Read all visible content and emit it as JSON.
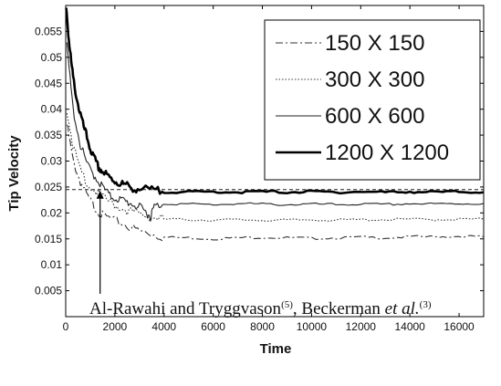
{
  "chart_data": {
    "type": "line",
    "xlabel": "Time",
    "ylabel": "Tip Velocity",
    "xlim": [
      0,
      17000
    ],
    "ylim": [
      0,
      0.06
    ],
    "xticks": [
      "0",
      "2000",
      "4000",
      "6000",
      "8000",
      "10000",
      "12000",
      "14000",
      "16000"
    ],
    "yticks": [
      "0.005",
      "0.01",
      "0.015",
      "0.02",
      "0.025",
      "0.03",
      "0.035",
      "0.04",
      "0.045",
      "0.05",
      "0.055"
    ],
    "grid": false,
    "legend_position": "top-right",
    "series": [
      {
        "name": "150 X 150",
        "style": "dash-dot",
        "color": "#333333",
        "points": [
          [
            50,
            0.037
          ],
          [
            300,
            0.03
          ],
          [
            600,
            0.026
          ],
          [
            900,
            0.023
          ],
          [
            1200,
            0.021
          ],
          [
            1500,
            0.0195
          ],
          [
            2000,
            0.0185
          ],
          [
            2500,
            0.0175
          ],
          [
            3000,
            0.0165
          ],
          [
            3500,
            0.016
          ],
          [
            4000,
            0.0153
          ],
          [
            5000,
            0.0152
          ],
          [
            6000,
            0.015
          ],
          [
            7000,
            0.0152
          ],
          [
            8000,
            0.0153
          ],
          [
            9000,
            0.0152
          ],
          [
            10000,
            0.0151
          ],
          [
            11000,
            0.0152
          ],
          [
            12000,
            0.0153
          ],
          [
            13000,
            0.0152
          ],
          [
            14000,
            0.0154
          ],
          [
            15000,
            0.0154
          ],
          [
            16000,
            0.0155
          ],
          [
            17000,
            0.0154
          ]
        ]
      },
      {
        "name": "300 X 300",
        "style": "dotted",
        "color": "#333333",
        "points": [
          [
            50,
            0.04
          ],
          [
            300,
            0.033
          ],
          [
            600,
            0.028
          ],
          [
            1000,
            0.025
          ],
          [
            1500,
            0.023
          ],
          [
            2000,
            0.0215
          ],
          [
            2500,
            0.0205
          ],
          [
            3000,
            0.0197
          ],
          [
            3500,
            0.0192
          ],
          [
            4000,
            0.0188
          ],
          [
            5000,
            0.0187
          ],
          [
            6000,
            0.0186
          ],
          [
            7000,
            0.0187
          ],
          [
            8000,
            0.0186
          ],
          [
            9000,
            0.0186
          ],
          [
            10000,
            0.0187
          ],
          [
            11000,
            0.0186
          ],
          [
            12000,
            0.0187
          ],
          [
            13000,
            0.0187
          ],
          [
            14000,
            0.0188
          ],
          [
            15000,
            0.0187
          ],
          [
            16000,
            0.0188
          ],
          [
            17000,
            0.0188
          ]
        ]
      },
      {
        "name": "600 X 600",
        "style": "solid-thin",
        "color": "#222222",
        "points": [
          [
            50,
            0.052
          ],
          [
            300,
            0.04
          ],
          [
            600,
            0.033
          ],
          [
            900,
            0.029
          ],
          [
            1200,
            0.027
          ],
          [
            1500,
            0.025
          ],
          [
            1800,
            0.0232
          ],
          [
            2100,
            0.0228
          ],
          [
            2400,
            0.0222
          ],
          [
            2700,
            0.0218
          ],
          [
            3000,
            0.021
          ],
          [
            3300,
            0.02
          ],
          [
            3450,
            0.0193
          ],
          [
            3600,
            0.0212
          ],
          [
            4000,
            0.0218
          ],
          [
            5000,
            0.0217
          ],
          [
            6000,
            0.0216
          ],
          [
            7000,
            0.0218
          ],
          [
            8000,
            0.0217
          ],
          [
            9000,
            0.0216
          ],
          [
            10000,
            0.0217
          ],
          [
            11000,
            0.0216
          ],
          [
            12000,
            0.0217
          ],
          [
            13000,
            0.0216
          ],
          [
            14000,
            0.0218
          ],
          [
            15000,
            0.0217
          ],
          [
            16000,
            0.0218
          ],
          [
            17000,
            0.0218
          ]
        ]
      },
      {
        "name": "1200 X 1200",
        "style": "solid-thick",
        "color": "#000000",
        "points": [
          [
            20,
            0.06
          ],
          [
            150,
            0.052
          ],
          [
            300,
            0.046
          ],
          [
            500,
            0.041
          ],
          [
            700,
            0.037
          ],
          [
            900,
            0.034
          ],
          [
            1100,
            0.031
          ],
          [
            1300,
            0.029
          ],
          [
            1500,
            0.028
          ],
          [
            1700,
            0.027
          ],
          [
            2000,
            0.0262
          ],
          [
            2300,
            0.0255
          ],
          [
            2600,
            0.025
          ],
          [
            3000,
            0.0246
          ],
          [
            3500,
            0.0243
          ],
          [
            4000,
            0.0241
          ],
          [
            5000,
            0.024
          ],
          [
            6000,
            0.0241
          ],
          [
            7000,
            0.024
          ],
          [
            8000,
            0.0241
          ],
          [
            9000,
            0.024
          ],
          [
            10000,
            0.0241
          ],
          [
            11000,
            0.024
          ],
          [
            12000,
            0.0241
          ],
          [
            13000,
            0.024
          ],
          [
            14000,
            0.0241
          ],
          [
            15000,
            0.024
          ],
          [
            16000,
            0.0241
          ],
          [
            17000,
            0.024
          ]
        ]
      }
    ],
    "reference_line": {
      "style": "dashed",
      "y": 0.0245
    },
    "annotation": {
      "text_main": "Al-Rawahi and Tryggvason",
      "sup1": "(5)",
      "text_mid": ", Beckerman ",
      "text_italic": "et al.",
      "sup2": "(3)",
      "arrow_to": {
        "x": 1400,
        "y": 0.0245
      }
    }
  }
}
